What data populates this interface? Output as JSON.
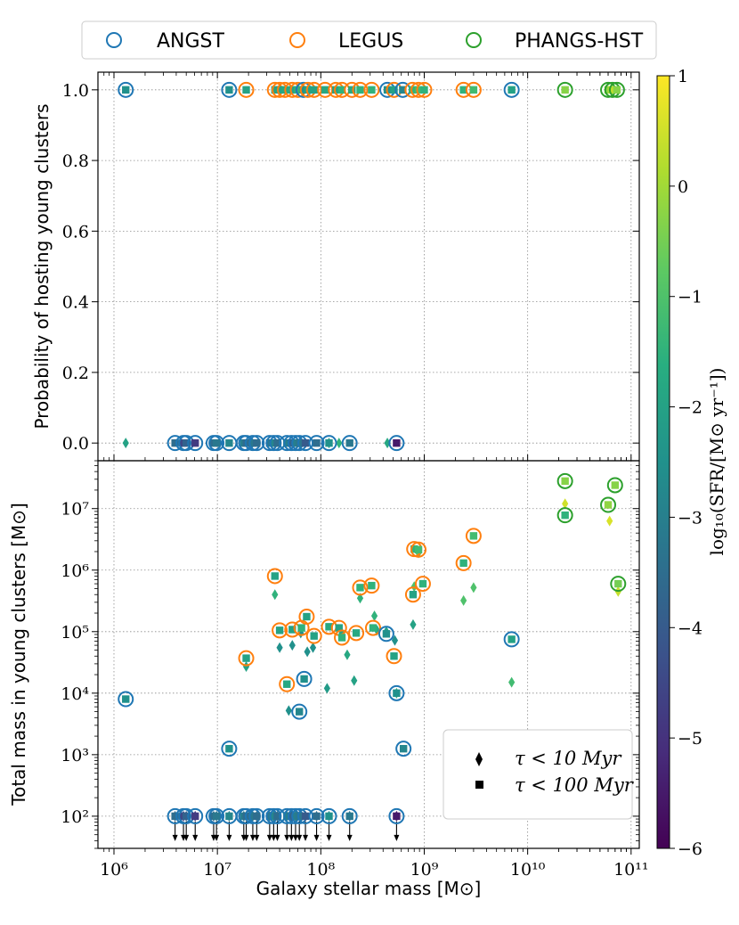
{
  "chart_data": [
    {
      "panel": "top",
      "type": "scatter",
      "ylabel": "Probability of hosting young clusters",
      "xscale": "log",
      "xlim": [
        700000,
        120000000000
      ],
      "ylim": [
        -0.05,
        1.05
      ],
      "ytick_labels": [
        "0.0",
        "0.2",
        "0.4",
        "0.6",
        "0.8",
        "1.0"
      ],
      "grid": true,
      "circle_points": [
        {
          "s": "ANGST",
          "x": 1300000.0,
          "y": 1.0,
          "c": -2.5
        },
        {
          "s": "ANGST",
          "x": 13000000.0,
          "y": 1.0,
          "c": -2.5
        },
        {
          "s": "LEGUS",
          "x": 19000000.0,
          "y": 1.0,
          "c": -2.0
        },
        {
          "s": "LEGUS",
          "x": 36000000.0,
          "y": 1.0,
          "c": -2.0
        },
        {
          "s": "LEGUS",
          "x": 40000000.0,
          "y": 1.0,
          "c": -2.0
        },
        {
          "s": "LEGUS",
          "x": 45000000.0,
          "y": 1.0,
          "c": -1.8
        },
        {
          "s": "LEGUS",
          "x": 53000000.0,
          "y": 1.0,
          "c": -2.0
        },
        {
          "s": "LEGUS",
          "x": 60000000.0,
          "y": 1.0,
          "c": -1.5
        },
        {
          "s": "ANGST",
          "x": 68000000.0,
          "y": 1.0,
          "c": -2.5
        },
        {
          "s": "LEGUS",
          "x": 75000000.0,
          "y": 1.0,
          "c": -2.0
        },
        {
          "s": "LEGUS",
          "x": 86000000.0,
          "y": 1.0,
          "c": -2.0
        },
        {
          "s": "LEGUS",
          "x": 110000000.0,
          "y": 1.0,
          "c": -1.8
        },
        {
          "s": "LEGUS",
          "x": 140000000.0,
          "y": 1.0,
          "c": -2.0
        },
        {
          "s": "LEGUS",
          "x": 160000000.0,
          "y": 1.0,
          "c": -1.5
        },
        {
          "s": "LEGUS",
          "x": 200000000.0,
          "y": 1.0,
          "c": -1.8
        },
        {
          "s": "LEGUS",
          "x": 240000000.0,
          "y": 1.0,
          "c": -1.5
        },
        {
          "s": "LEGUS",
          "x": 310000000.0,
          "y": 1.0,
          "c": -1.5
        },
        {
          "s": "ANGST",
          "x": 440000000.0,
          "y": 1.0,
          "c": -2.5
        },
        {
          "s": "LEGUS",
          "x": 510000000.0,
          "y": 1.0,
          "c": -2.0
        },
        {
          "s": "ANGST",
          "x": 620000000.0,
          "y": 1.0,
          "c": -2.8
        },
        {
          "s": "LEGUS",
          "x": 770000000.0,
          "y": 1.0,
          "c": -1.5
        },
        {
          "s": "LEGUS",
          "x": 880000000.0,
          "y": 1.0,
          "c": -1.2
        },
        {
          "s": "LEGUS",
          "x": 1000000000.0,
          "y": 1.0,
          "c": -1.5
        },
        {
          "s": "LEGUS",
          "x": 2400000000.0,
          "y": 1.0,
          "c": -1.5
        },
        {
          "s": "LEGUS",
          "x": 3000000000.0,
          "y": 1.0,
          "c": -1.2
        },
        {
          "s": "ANGST",
          "x": 7000000000.0,
          "y": 1.0,
          "c": -2.0
        },
        {
          "s": "PHANGS-HST",
          "x": 23000000000.0,
          "y": 1.0,
          "c": -0.3
        },
        {
          "s": "PHANGS-HST",
          "x": 60000000000.0,
          "y": 1.0,
          "c": -0.2
        },
        {
          "s": "PHANGS-HST",
          "x": 66000000000.0,
          "y": 1.0,
          "c": 0.3
        },
        {
          "s": "PHANGS-HST",
          "x": 73000000000.0,
          "y": 1.0,
          "c": -0.3
        },
        {
          "s": "ANGST",
          "x": 3900000.0,
          "y": 0.0,
          "c": -3.5
        },
        {
          "s": "ANGST",
          "x": 4700000.0,
          "y": 0.0,
          "c": -4.5
        },
        {
          "s": "ANGST",
          "x": 5000000.0,
          "y": 0.0,
          "c": -3.8
        },
        {
          "s": "ANGST",
          "x": 6100000.0,
          "y": 0.0,
          "c": -4.8
        },
        {
          "s": "ANGST",
          "x": 9200000.0,
          "y": 0.0,
          "c": -3.5
        },
        {
          "s": "ANGST",
          "x": 9800000.0,
          "y": 0.0,
          "c": -3.2
        },
        {
          "s": "ANGST",
          "x": 13000000.0,
          "y": 0.0,
          "c": -2.8
        },
        {
          "s": "ANGST",
          "x": 18000000.0,
          "y": 0.0,
          "c": -3.0
        },
        {
          "s": "ANGST",
          "x": 19000000.0,
          "y": 0.0,
          "c": -3.5
        },
        {
          "s": "ANGST",
          "x": 22000000.0,
          "y": 0.0,
          "c": -3.2
        },
        {
          "s": "ANGST",
          "x": 24000000.0,
          "y": 0.0,
          "c": -3.5
        },
        {
          "s": "ANGST",
          "x": 32000000.0,
          "y": 0.0,
          "c": -3.2
        },
        {
          "s": "ANGST",
          "x": 35000000.0,
          "y": 0.0,
          "c": -2.8
        },
        {
          "s": "ANGST",
          "x": 38000000.0,
          "y": 0.0,
          "c": -3.5
        },
        {
          "s": "ANGST",
          "x": 47000000.0,
          "y": 0.0,
          "c": -3.0
        },
        {
          "s": "ANGST",
          "x": 52000000.0,
          "y": 0.0,
          "c": -3.8
        },
        {
          "s": "ANGST",
          "x": 57000000.0,
          "y": 0.0,
          "c": -3.0
        },
        {
          "s": "ANGST",
          "x": 62000000.0,
          "y": 0.0,
          "c": -3.2
        },
        {
          "s": "ANGST",
          "x": 71000000.0,
          "y": 0.0,
          "c": -4.0
        },
        {
          "s": "ANGST",
          "x": 91000000.0,
          "y": 0.0,
          "c": -3.5
        },
        {
          "s": "ANGST",
          "x": 120000000.0,
          "y": 0.0,
          "c": -2.5
        },
        {
          "s": "ANGST",
          "x": 190000000.0,
          "y": 0.0,
          "c": -3.2
        },
        {
          "s": "ANGST",
          "x": 540000000.0,
          "y": 0.0,
          "c": -5.5
        }
      ],
      "diamond_points": [
        {
          "x": 1300000.0,
          "y": 0.0,
          "c": -2.0
        },
        {
          "x": 120000000.0,
          "y": 0.0,
          "c": -2.0
        },
        {
          "x": 150000000.0,
          "y": 0.0,
          "c": -1.5
        },
        {
          "x": 440000000.0,
          "y": 0.0,
          "c": -1.8
        }
      ]
    },
    {
      "panel": "bottom",
      "type": "scatter",
      "xlabel": "Galaxy stellar mass [M⊙]",
      "ylabel": "Total mass in young clusters [M⊙]",
      "xscale": "log",
      "yscale": "log",
      "xlim": [
        700000,
        120000000000
      ],
      "ylim": [
        30,
        60000000
      ],
      "xtick_labels": [
        "10⁶",
        "10⁷",
        "10⁸",
        "10⁹",
        "10¹⁰",
        "10¹¹"
      ],
      "ytick_labels": [
        "10²",
        "10³",
        "10⁴",
        "10⁵",
        "10⁶",
        "10⁷"
      ],
      "grid": true,
      "legend_position": "lower-right",
      "upper_limit_y": 100,
      "circle_points": [
        {
          "s": "ANGST",
          "x": 1300000.0,
          "y": 8000,
          "c": -2.5
        },
        {
          "s": "ANGST",
          "x": 13000000.0,
          "y": 1250,
          "c": -2.5
        },
        {
          "s": "LEGUS",
          "x": 19000000.0,
          "y": 37000,
          "c": -2.0
        },
        {
          "s": "LEGUS",
          "x": 36000000.0,
          "y": 800000,
          "c": -2.0
        },
        {
          "s": "LEGUS",
          "x": 40000000.0,
          "y": 105000,
          "c": -2.0
        },
        {
          "s": "LEGUS",
          "x": 47000000.0,
          "y": 14000,
          "c": -1.8
        },
        {
          "s": "LEGUS",
          "x": 53000000.0,
          "y": 108000,
          "c": -2.0
        },
        {
          "s": "ANGST",
          "x": 62000000.0,
          "y": 5000,
          "c": -2.8
        },
        {
          "s": "LEGUS",
          "x": 65000000.0,
          "y": 115000,
          "c": -1.5
        },
        {
          "s": "ANGST",
          "x": 69000000.0,
          "y": 17000,
          "c": -2.5
        },
        {
          "s": "LEGUS",
          "x": 73000000.0,
          "y": 175000,
          "c": -2.0
        },
        {
          "s": "LEGUS",
          "x": 86000000.0,
          "y": 85000,
          "c": -2.0
        },
        {
          "s": "LEGUS",
          "x": 120000000.0,
          "y": 120000,
          "c": -1.8
        },
        {
          "s": "LEGUS",
          "x": 150000000.0,
          "y": 115000,
          "c": -2.0
        },
        {
          "s": "LEGUS",
          "x": 160000000.0,
          "y": 80000,
          "c": -1.5
        },
        {
          "s": "LEGUS",
          "x": 220000000.0,
          "y": 95000,
          "c": -1.8
        },
        {
          "s": "LEGUS",
          "x": 240000000.0,
          "y": 520000,
          "c": -1.5
        },
        {
          "s": "LEGUS",
          "x": 310000000.0,
          "y": 560000,
          "c": -1.5
        },
        {
          "s": "LEGUS",
          "x": 320000000.0,
          "y": 115000,
          "c": -1.5
        },
        {
          "s": "ANGST",
          "x": 430000000.0,
          "y": 92000,
          "c": -2.5
        },
        {
          "s": "LEGUS",
          "x": 510000000.0,
          "y": 40000,
          "c": -2.0
        },
        {
          "s": "ANGST",
          "x": 540000000.0,
          "y": 10000,
          "c": -2.5
        },
        {
          "s": "ANGST",
          "x": 630000000.0,
          "y": 1250,
          "c": -2.8
        },
        {
          "s": "LEGUS",
          "x": 780000000.0,
          "y": 400000,
          "c": -2.0
        },
        {
          "s": "LEGUS",
          "x": 800000000.0,
          "y": 2200000,
          "c": -1.5
        },
        {
          "s": "LEGUS",
          "x": 880000000.0,
          "y": 2150000,
          "c": -1.2
        },
        {
          "s": "LEGUS",
          "x": 970000000.0,
          "y": 600000,
          "c": -1.5
        },
        {
          "s": "LEGUS",
          "x": 2400000000.0,
          "y": 1300000,
          "c": -1.5
        },
        {
          "s": "LEGUS",
          "x": 3000000000.0,
          "y": 3600000,
          "c": -1.2
        },
        {
          "s": "ANGST",
          "x": 7000000000.0,
          "y": 75000,
          "c": -2.0
        },
        {
          "s": "PHANGS-HST",
          "x": 23000000000.0,
          "y": 28000000,
          "c": -0.3
        },
        {
          "s": "PHANGS-HST",
          "x": 23000000000.0,
          "y": 7800000,
          "c": -1.5
        },
        {
          "s": "PHANGS-HST",
          "x": 60000000000.0,
          "y": 11500000,
          "c": -0.2
        },
        {
          "s": "PHANGS-HST",
          "x": 70000000000.0,
          "y": 24000000,
          "c": -0.3
        },
        {
          "s": "PHANGS-HST",
          "x": 75000000000.0,
          "y": 600000,
          "c": -0.5
        },
        {
          "s": "ANGST",
          "x": 3900000.0,
          "y": 100,
          "c": -3.5
        },
        {
          "s": "ANGST",
          "x": 4700000.0,
          "y": 100,
          "c": -4.5
        },
        {
          "s": "ANGST",
          "x": 5000000.0,
          "y": 100,
          "c": -3.8
        },
        {
          "s": "ANGST",
          "x": 6100000.0,
          "y": 100,
          "c": -4.8
        },
        {
          "s": "ANGST",
          "x": 9200000.0,
          "y": 100,
          "c": -3.5
        },
        {
          "s": "ANGST",
          "x": 9800000.0,
          "y": 100,
          "c": -3.2
        },
        {
          "s": "ANGST",
          "x": 13000000.0,
          "y": 100,
          "c": -2.8
        },
        {
          "s": "ANGST",
          "x": 18000000.0,
          "y": 100,
          "c": -3.0
        },
        {
          "s": "ANGST",
          "x": 19000000.0,
          "y": 100,
          "c": -3.5
        },
        {
          "s": "ANGST",
          "x": 22000000.0,
          "y": 100,
          "c": -3.2
        },
        {
          "s": "ANGST",
          "x": 24000000.0,
          "y": 100,
          "c": -3.5
        },
        {
          "s": "ANGST",
          "x": 32000000.0,
          "y": 100,
          "c": -3.2
        },
        {
          "s": "ANGST",
          "x": 35000000.0,
          "y": 100,
          "c": -2.8
        },
        {
          "s": "ANGST",
          "x": 38000000.0,
          "y": 100,
          "c": -3.5
        },
        {
          "s": "ANGST",
          "x": 47000000.0,
          "y": 100,
          "c": -3.0
        },
        {
          "s": "ANGST",
          "x": 52000000.0,
          "y": 100,
          "c": -3.8
        },
        {
          "s": "ANGST",
          "x": 57000000.0,
          "y": 100,
          "c": -3.0
        },
        {
          "s": "ANGST",
          "x": 62000000.0,
          "y": 100,
          "c": -3.2
        },
        {
          "s": "ANGST",
          "x": 71000000.0,
          "y": 100,
          "c": -4.0
        },
        {
          "s": "ANGST",
          "x": 91000000.0,
          "y": 100,
          "c": -3.5
        },
        {
          "s": "ANGST",
          "x": 120000000.0,
          "y": 100,
          "c": -2.5
        },
        {
          "s": "ANGST",
          "x": 190000000.0,
          "y": 100,
          "c": -3.2
        },
        {
          "s": "ANGST",
          "x": 540000000.0,
          "y": 100,
          "c": -5.5
        }
      ],
      "diamond_points": [
        {
          "x": 19000000.0,
          "y": 27000,
          "c": -2.0
        },
        {
          "x": 36000000.0,
          "y": 400000,
          "c": -1.5
        },
        {
          "x": 40000000.0,
          "y": 55000,
          "c": -2.5
        },
        {
          "x": 49000000.0,
          "y": 5200,
          "c": -2.5
        },
        {
          "x": 53000000.0,
          "y": 60000,
          "c": -2.5
        },
        {
          "x": 64000000.0,
          "y": 95000,
          "c": -2.5
        },
        {
          "x": 74000000.0,
          "y": 47000,
          "c": -2.5
        },
        {
          "x": 84000000.0,
          "y": 55000,
          "c": -2.5
        },
        {
          "x": 115000000.0,
          "y": 12000,
          "c": -2.2
        },
        {
          "x": 160000000.0,
          "y": 95000,
          "c": -2.0
        },
        {
          "x": 180000000.0,
          "y": 42000,
          "c": -1.8
        },
        {
          "x": 210000000.0,
          "y": 16000,
          "c": -2.0
        },
        {
          "x": 240000000.0,
          "y": 350000,
          "c": -1.5
        },
        {
          "x": 330000000.0,
          "y": 180000,
          "c": -1.5
        },
        {
          "x": 350000000.0,
          "y": 105000,
          "c": -1.8
        },
        {
          "x": 430000000.0,
          "y": 100000,
          "c": -2.0
        },
        {
          "x": 520000000.0,
          "y": 72000,
          "c": -2.5
        },
        {
          "x": 540000000.0,
          "y": 10000,
          "c": -1.5
        },
        {
          "x": 780000000.0,
          "y": 130000,
          "c": -2.0
        },
        {
          "x": 800000000.0,
          "y": 540000,
          "c": -1.0
        },
        {
          "x": 880000000.0,
          "y": 1900000,
          "c": -0.8
        },
        {
          "x": 2400000000.0,
          "y": 320000,
          "c": -1.0
        },
        {
          "x": 3000000000.0,
          "y": 520000,
          "c": -1.0
        },
        {
          "x": 7000000000.0,
          "y": 15000,
          "c": -1.2
        },
        {
          "x": 23000000000.0,
          "y": 12000000,
          "c": 0.5
        },
        {
          "x": 62000000000.0,
          "y": 6300000,
          "c": 0.6
        },
        {
          "x": 75000000000.0,
          "y": 450000,
          "c": 0.4
        }
      ]
    }
  ],
  "legend_top": {
    "entries": [
      {
        "label": "ANGST",
        "color": "#1f77b4"
      },
      {
        "label": "LEGUS",
        "color": "#ff7f0e"
      },
      {
        "label": "PHANGS-HST",
        "color": "#2ca02c"
      }
    ]
  },
  "legend_bottom": {
    "entries": [
      {
        "label": "τ < 10 Myr",
        "marker": "diamond"
      },
      {
        "label": "τ < 100 Myr",
        "marker": "square"
      }
    ]
  },
  "colorbar": {
    "label": "log₁₀(SFR/[M⊙ yr⁻¹])",
    "range": [
      -6,
      1
    ],
    "colormap": "viridis",
    "tick_labels": [
      "1",
      "0",
      "−1",
      "−2",
      "−3",
      "−4",
      "−5",
      "−6"
    ]
  }
}
